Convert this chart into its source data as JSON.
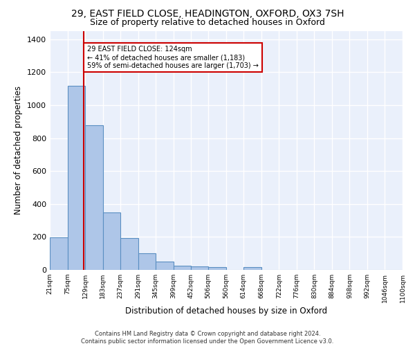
{
  "title1": "29, EAST FIELD CLOSE, HEADINGTON, OXFORD, OX3 7SH",
  "title2": "Size of property relative to detached houses in Oxford",
  "xlabel": "Distribution of detached houses by size in Oxford",
  "ylabel": "Number of detached properties",
  "footnote": "Contains HM Land Registry data © Crown copyright and database right 2024.\nContains public sector information licensed under the Open Government Licence v3.0.",
  "bar_edges": [
    21,
    75,
    129,
    183,
    237,
    291,
    345,
    399,
    452,
    506,
    560,
    614,
    668,
    722,
    776,
    830,
    884,
    938,
    992,
    1046,
    1100
  ],
  "bar_heights": [
    197,
    1120,
    878,
    350,
    192,
    99,
    52,
    25,
    22,
    18,
    0,
    15,
    0,
    0,
    0,
    0,
    0,
    0,
    0,
    0
  ],
  "bar_color": "#aec6e8",
  "bar_edge_color": "#5a8fc2",
  "bar_linewidth": 0.8,
  "vline_x": 124,
  "vline_color": "#cc0000",
  "annotation_text": "29 EAST FIELD CLOSE: 124sqm\n← 41% of detached houses are smaller (1,183)\n59% of semi-detached houses are larger (1,703) →",
  "annotation_box_edgecolor": "#cc0000",
  "annotation_box_facecolor": "#ffffff",
  "ylim": [
    0,
    1450
  ],
  "yticks": [
    0,
    200,
    400,
    600,
    800,
    1000,
    1200,
    1400
  ],
  "bg_color": "#eaf0fb",
  "grid_color": "#ffffff",
  "title1_fontsize": 10,
  "title2_fontsize": 9,
  "tick_labels": [
    "21sqm",
    "75sqm",
    "129sqm",
    "183sqm",
    "237sqm",
    "291sqm",
    "345sqm",
    "399sqm",
    "452sqm",
    "506sqm",
    "560sqm",
    "614sqm",
    "668sqm",
    "722sqm",
    "776sqm",
    "830sqm",
    "884sqm",
    "938sqm",
    "992sqm",
    "1046sqm",
    "1100sqm"
  ]
}
